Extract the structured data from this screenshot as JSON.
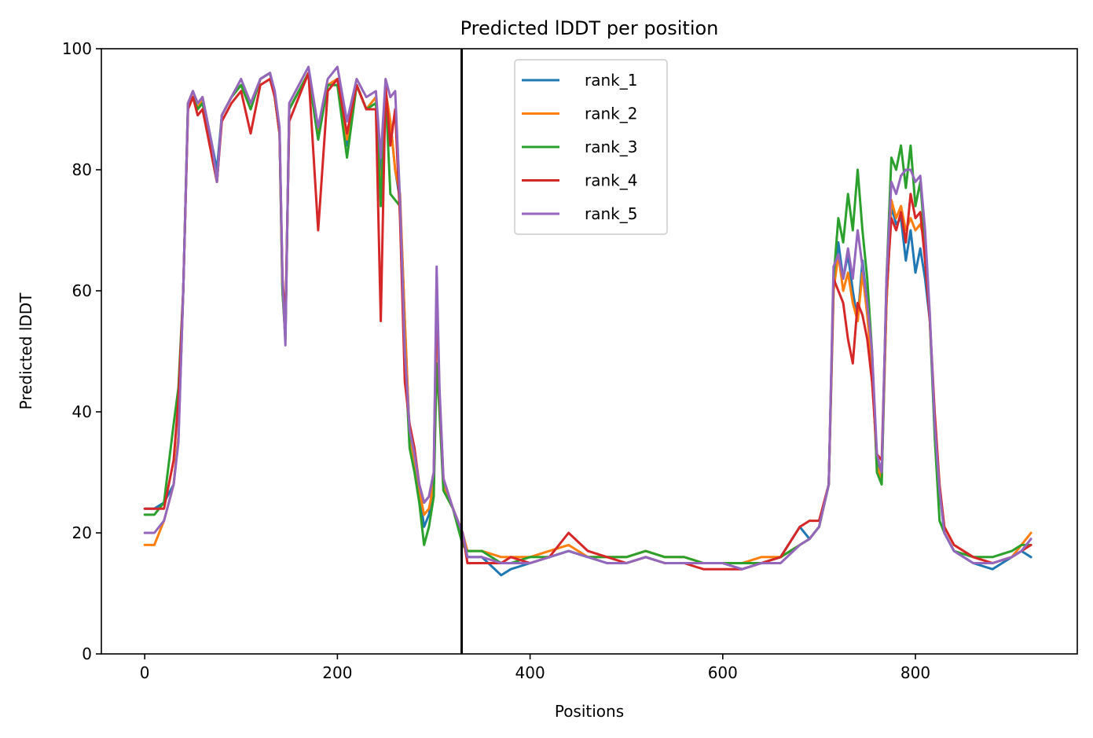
{
  "chart_data": {
    "type": "line",
    "title": "Predicted lDDT per position",
    "xlabel": "Positions",
    "ylabel": "Predicted lDDT",
    "xlim": [
      -45,
      968
    ],
    "ylim": [
      0,
      100
    ],
    "xticks": [
      0,
      200,
      400,
      600,
      800
    ],
    "yticks": [
      0,
      20,
      40,
      60,
      80,
      100
    ],
    "grid": false,
    "legend_position": "upper-center",
    "vline": {
      "x": 329,
      "color": "#000000"
    },
    "x": [
      0,
      10,
      20,
      30,
      35,
      40,
      45,
      50,
      55,
      60,
      65,
      70,
      75,
      80,
      90,
      100,
      110,
      120,
      130,
      135,
      140,
      143,
      146,
      150,
      160,
      170,
      180,
      190,
      200,
      210,
      220,
      230,
      240,
      245,
      250,
      255,
      260,
      265,
      270,
      275,
      280,
      285,
      290,
      295,
      300,
      303,
      306,
      310,
      320,
      330,
      335,
      350,
      370,
      380,
      400,
      420,
      440,
      460,
      480,
      500,
      520,
      540,
      560,
      580,
      600,
      620,
      640,
      660,
      680,
      690,
      700,
      710,
      715,
      720,
      725,
      730,
      735,
      740,
      745,
      750,
      755,
      760,
      765,
      770,
      775,
      780,
      785,
      790,
      795,
      800,
      805,
      810,
      815,
      820,
      825,
      830,
      840,
      860,
      880,
      900,
      910,
      920
    ],
    "series": [
      {
        "name": "rank_1",
        "color": "#1f77b4",
        "values": [
          24,
          24,
          25,
          28,
          36,
          60,
          91,
          93,
          90,
          92,
          88,
          84,
          80,
          89,
          92,
          94,
          90,
          95,
          96,
          92,
          86,
          60,
          53,
          90,
          93,
          96,
          85,
          94,
          95,
          84,
          94,
          90,
          92,
          78,
          93,
          88,
          80,
          75,
          55,
          36,
          32,
          27,
          21,
          23,
          28,
          58,
          42,
          28,
          24,
          19,
          16,
          16,
          13,
          14,
          15,
          16,
          17,
          16,
          15,
          15,
          16,
          15,
          15,
          15,
          15,
          14,
          15,
          16,
          21,
          19,
          21,
          28,
          60,
          68,
          62,
          66,
          60,
          55,
          65,
          58,
          48,
          32,
          30,
          58,
          74,
          71,
          72,
          65,
          70,
          63,
          67,
          62,
          55,
          38,
          27,
          20,
          17,
          15,
          14,
          16,
          17,
          16
        ]
      },
      {
        "name": "rank_2",
        "color": "#ff7f0e",
        "values": [
          18,
          18,
          22,
          28,
          36,
          60,
          91,
          93,
          90,
          92,
          88,
          83,
          78,
          89,
          92,
          94,
          90,
          95,
          96,
          92,
          86,
          60,
          52,
          90,
          93,
          96,
          86,
          94,
          95,
          85,
          94,
          90,
          92,
          75,
          93,
          88,
          80,
          76,
          55,
          36,
          32,
          27,
          23,
          24,
          28,
          58,
          42,
          28,
          24,
          20,
          17,
          17,
          16,
          16,
          16,
          17,
          18,
          16,
          16,
          16,
          17,
          16,
          16,
          15,
          15,
          15,
          16,
          16,
          18,
          19,
          21,
          28,
          60,
          66,
          60,
          63,
          58,
          55,
          63,
          56,
          47,
          31,
          29,
          58,
          75,
          72,
          74,
          70,
          72,
          70,
          71,
          68,
          55,
          38,
          27,
          21,
          18,
          16,
          15,
          16,
          18,
          20
        ]
      },
      {
        "name": "rank_3",
        "color": "#2ca02c",
        "values": [
          23,
          23,
          25,
          38,
          44,
          60,
          91,
          92,
          90,
          91,
          87,
          82,
          78,
          89,
          92,
          94,
          90,
          95,
          96,
          92,
          86,
          60,
          52,
          90,
          93,
          96,
          85,
          94,
          94,
          82,
          94,
          90,
          91,
          74,
          93,
          76,
          75,
          74,
          50,
          34,
          30,
          25,
          18,
          21,
          26,
          48,
          40,
          27,
          24,
          18,
          17,
          17,
          15,
          15,
          16,
          16,
          17,
          16,
          16,
          16,
          17,
          16,
          16,
          15,
          15,
          15,
          15,
          16,
          18,
          19,
          21,
          28,
          62,
          72,
          68,
          76,
          70,
          80,
          70,
          62,
          50,
          30,
          28,
          62,
          82,
          80,
          84,
          77,
          84,
          74,
          78,
          68,
          55,
          36,
          22,
          20,
          17,
          16,
          16,
          17,
          18,
          18
        ]
      },
      {
        "name": "rank_4",
        "color": "#d62728",
        "values": [
          24,
          24,
          24,
          32,
          42,
          60,
          90,
          92,
          89,
          90,
          86,
          82,
          78,
          88,
          91,
          93,
          86,
          94,
          95,
          92,
          86,
          62,
          55,
          88,
          92,
          96,
          70,
          93,
          95,
          86,
          94,
          90,
          90,
          55,
          94,
          84,
          90,
          72,
          45,
          38,
          34,
          28,
          25,
          26,
          30,
          60,
          43,
          29,
          24,
          20,
          15,
          15,
          15,
          16,
          15,
          16,
          20,
          17,
          16,
          15,
          16,
          15,
          15,
          14,
          14,
          14,
          15,
          16,
          21,
          22,
          22,
          28,
          62,
          60,
          58,
          52,
          48,
          58,
          56,
          52,
          45,
          33,
          32,
          60,
          72,
          70,
          73,
          68,
          76,
          72,
          73,
          65,
          55,
          40,
          28,
          21,
          18,
          16,
          15,
          16,
          17,
          18
        ]
      },
      {
        "name": "rank_5",
        "color": "#9467bd",
        "values": [
          20,
          20,
          22,
          28,
          35,
          60,
          91,
          93,
          91,
          92,
          88,
          84,
          78,
          89,
          92,
          95,
          91,
          95,
          96,
          93,
          87,
          62,
          51,
          91,
          94,
          97,
          87,
          95,
          97,
          88,
          95,
          92,
          93,
          82,
          95,
          92,
          93,
          75,
          50,
          37,
          33,
          28,
          25,
          26,
          30,
          64,
          44,
          29,
          24,
          20,
          16,
          16,
          15,
          15,
          15,
          16,
          17,
          16,
          15,
          15,
          16,
          15,
          15,
          15,
          15,
          14,
          15,
          15,
          18,
          19,
          21,
          28,
          64,
          66,
          62,
          67,
          62,
          70,
          64,
          58,
          50,
          33,
          30,
          62,
          78,
          76,
          79,
          80,
          80,
          78,
          79,
          70,
          56,
          38,
          27,
          20,
          17,
          15,
          15,
          16,
          17,
          19
        ]
      }
    ]
  }
}
